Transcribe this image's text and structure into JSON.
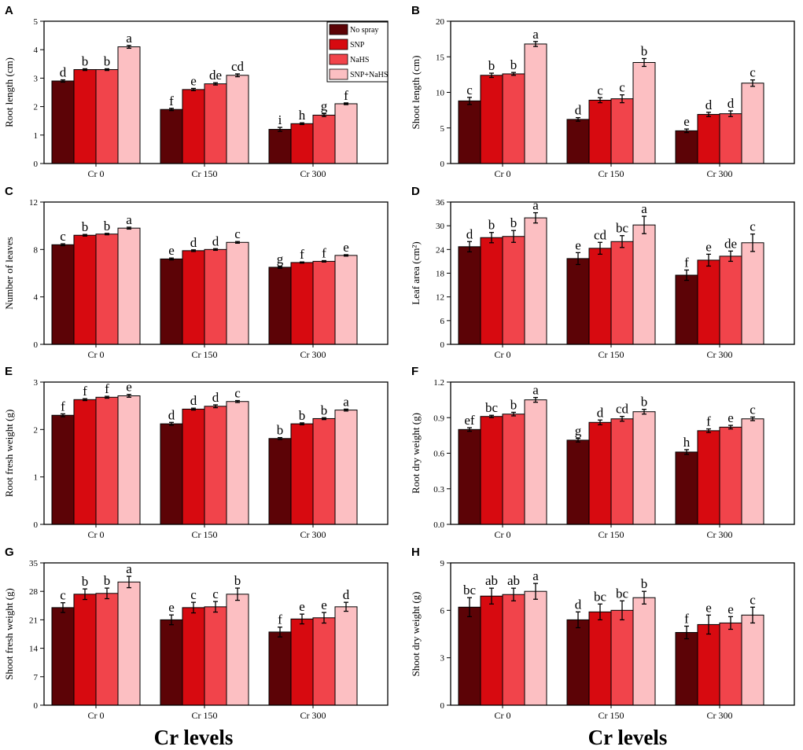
{
  "figure": {
    "xlabel": "Cr levels",
    "categories": [
      "Cr 0",
      "Cr 150",
      "Cr 300"
    ],
    "legend": [
      "No spray",
      "SNP",
      "NaHS",
      "SNP+NaHS"
    ],
    "colors": {
      "No spray": "#5c0306",
      "SNP": "#d70a10",
      "NaHS": "#f1444b",
      "SNP+NaHS": "#fcbfc2"
    }
  },
  "chart_data": [
    {
      "type": "bar",
      "panel": "A",
      "ylabel": "Root length (cm)",
      "categories": [
        "Cr 0",
        "Cr 150",
        "Cr 300"
      ],
      "ylim": [
        0,
        5
      ],
      "yticks": [
        "0",
        "1",
        "2",
        "3",
        "4",
        "5"
      ],
      "legend": "top-right",
      "series": [
        {
          "name": "No spray",
          "values": [
            2.9,
            1.9,
            1.2
          ],
          "errors": [
            0.04,
            0.04,
            0.07
          ],
          "letters": [
            "d",
            "f",
            "i"
          ]
        },
        {
          "name": "SNP",
          "values": [
            3.3,
            2.6,
            1.4
          ],
          "errors": [
            0.03,
            0.04,
            0.03
          ],
          "letters": [
            "b",
            "e",
            "h"
          ]
        },
        {
          "name": "NaHS",
          "values": [
            3.3,
            2.8,
            1.7
          ],
          "errors": [
            0.03,
            0.04,
            0.05
          ],
          "letters": [
            "b",
            "de",
            "g"
          ]
        },
        {
          "name": "SNP+NaHS",
          "values": [
            4.1,
            3.1,
            2.1
          ],
          "errors": [
            0.05,
            0.05,
            0.03
          ],
          "letters": [
            "a",
            "cd",
            "f"
          ]
        }
      ]
    },
    {
      "type": "bar",
      "panel": "B",
      "ylabel": "Shoot length (cm)",
      "categories": [
        "Cr 0",
        "Cr 150",
        "Cr 300"
      ],
      "ylim": [
        0,
        20
      ],
      "yticks": [
        "0",
        "5",
        "10",
        "15",
        "20"
      ],
      "series": [
        {
          "name": "No spray",
          "values": [
            8.8,
            6.2,
            4.6
          ],
          "errors": [
            0.5,
            0.25,
            0.25
          ],
          "letters": [
            "c",
            "d",
            "e"
          ]
        },
        {
          "name": "SNP",
          "values": [
            12.4,
            8.9,
            6.9
          ],
          "errors": [
            0.3,
            0.35,
            0.3
          ],
          "letters": [
            "b",
            "c",
            "d"
          ]
        },
        {
          "name": "NaHS",
          "values": [
            12.6,
            9.1,
            7.0
          ],
          "errors": [
            0.2,
            0.55,
            0.4
          ],
          "letters": [
            "b",
            "c",
            "d"
          ]
        },
        {
          "name": "SNP+NaHS",
          "values": [
            16.8,
            14.2,
            11.3
          ],
          "errors": [
            0.35,
            0.55,
            0.45
          ],
          "letters": [
            "a",
            "b",
            "c"
          ]
        }
      ]
    },
    {
      "type": "bar",
      "panel": "C",
      "ylabel": "Number of leaves",
      "categories": [
        "Cr 0",
        "Cr 150",
        "Cr 300"
      ],
      "ylim": [
        0,
        12
      ],
      "yticks": [
        "0",
        "4",
        "8",
        "12"
      ],
      "series": [
        {
          "name": "No spray",
          "values": [
            8.4,
            7.2,
            6.5
          ],
          "errors": [
            0.08,
            0.08,
            0.08
          ],
          "letters": [
            "c",
            "e",
            "g"
          ]
        },
        {
          "name": "SNP",
          "values": [
            9.2,
            7.9,
            6.9
          ],
          "errors": [
            0.07,
            0.07,
            0.05
          ],
          "letters": [
            "b",
            "d",
            "f"
          ]
        },
        {
          "name": "NaHS",
          "values": [
            9.3,
            8.0,
            7.0
          ],
          "errors": [
            0.06,
            0.07,
            0.06
          ],
          "letters": [
            "b",
            "d",
            "f"
          ]
        },
        {
          "name": "SNP+NaHS",
          "values": [
            9.8,
            8.6,
            7.5
          ],
          "errors": [
            0.08,
            0.07,
            0.06
          ],
          "letters": [
            "a",
            "c",
            "e"
          ]
        }
      ]
    },
    {
      "type": "bar",
      "panel": "D",
      "ylabel": "Leaf area (cm²)",
      "categories": [
        "Cr 0",
        "Cr 150",
        "Cr 300"
      ],
      "ylim": [
        0,
        36
      ],
      "yticks": [
        "0",
        "6",
        "12",
        "18",
        "24",
        "30",
        "36"
      ],
      "series": [
        {
          "name": "No spray",
          "values": [
            24.7,
            21.7,
            17.5
          ],
          "errors": [
            1.3,
            1.5,
            1.3
          ],
          "letters": [
            "d",
            "e",
            "f"
          ]
        },
        {
          "name": "SNP",
          "values": [
            27.0,
            24.3,
            21.3
          ],
          "errors": [
            1.3,
            1.5,
            1.5
          ],
          "letters": [
            "b",
            "cd",
            "e"
          ]
        },
        {
          "name": "NaHS",
          "values": [
            27.3,
            26.0,
            22.3
          ],
          "errors": [
            1.5,
            1.5,
            1.3
          ],
          "letters": [
            "b",
            "bc",
            "de"
          ]
        },
        {
          "name": "SNP+NaHS",
          "values": [
            32.0,
            30.2,
            25.7
          ],
          "errors": [
            1.3,
            2.2,
            2.2
          ],
          "letters": [
            "a",
            "a",
            "c"
          ]
        }
      ]
    },
    {
      "type": "bar",
      "panel": "E",
      "ylabel": "Root fresh weight (g)",
      "categories": [
        "Cr 0",
        "Cr 150",
        "Cr 300"
      ],
      "ylim": [
        0,
        3
      ],
      "yticks": [
        "0",
        "1",
        "2",
        "3"
      ],
      "series": [
        {
          "name": "No spray",
          "values": [
            2.3,
            2.12,
            1.81
          ],
          "errors": [
            0.03,
            0.03,
            0.02
          ],
          "letters": [
            "f",
            "d",
            "b"
          ]
        },
        {
          "name": "SNP",
          "values": [
            2.63,
            2.43,
            2.12
          ],
          "errors": [
            0.02,
            0.02,
            0.02
          ],
          "letters": [
            "f",
            "d",
            "b"
          ]
        },
        {
          "name": "NaHS",
          "values": [
            2.68,
            2.49,
            2.23
          ],
          "errors": [
            0.02,
            0.03,
            0.02
          ],
          "letters": [
            "f",
            "d",
            "b"
          ]
        },
        {
          "name": "SNP+NaHS",
          "values": [
            2.71,
            2.59,
            2.41
          ],
          "errors": [
            0.03,
            0.02,
            0.02
          ],
          "letters": [
            "e",
            "c",
            "a"
          ]
        }
      ]
    },
    {
      "type": "bar",
      "panel": "F",
      "ylabel": "Root dry weight (g)",
      "categories": [
        "Cr 0",
        "Cr 150",
        "Cr 300"
      ],
      "ylim": [
        0,
        1.2
      ],
      "yticks": [
        "0.0",
        "0.3",
        "0.6",
        "0.9",
        "1.2"
      ],
      "series": [
        {
          "name": "No spray",
          "values": [
            0.8,
            0.71,
            0.61
          ],
          "errors": [
            0.015,
            0.015,
            0.02
          ],
          "letters": [
            "ef",
            "g",
            "h"
          ]
        },
        {
          "name": "SNP",
          "values": [
            0.91,
            0.86,
            0.79
          ],
          "errors": [
            0.01,
            0.02,
            0.015
          ],
          "letters": [
            "bc",
            "d",
            "f"
          ]
        },
        {
          "name": "NaHS",
          "values": [
            0.93,
            0.89,
            0.82
          ],
          "errors": [
            0.015,
            0.02,
            0.015
          ],
          "letters": [
            "b",
            "cd",
            "e"
          ]
        },
        {
          "name": "SNP+NaHS",
          "values": [
            1.05,
            0.95,
            0.89
          ],
          "errors": [
            0.02,
            0.02,
            0.015
          ],
          "letters": [
            "a",
            "b",
            "c"
          ]
        }
      ]
    },
    {
      "type": "bar",
      "panel": "G",
      "ylabel": "Shoot fresh weight (g)",
      "categories": [
        "Cr 0",
        "Cr 150",
        "Cr 300"
      ],
      "ylim": [
        0,
        35
      ],
      "yticks": [
        "0",
        "7",
        "14",
        "21",
        "28",
        "35"
      ],
      "series": [
        {
          "name": "No spray",
          "values": [
            24.0,
            21.0,
            18.0
          ],
          "errors": [
            1.2,
            1.2,
            1.2
          ],
          "letters": [
            "c",
            "e",
            "f"
          ]
        },
        {
          "name": "SNP",
          "values": [
            27.3,
            24.0,
            21.2
          ],
          "errors": [
            1.3,
            1.3,
            1.2
          ],
          "letters": [
            "b",
            "c",
            "e"
          ]
        },
        {
          "name": "NaHS",
          "values": [
            27.5,
            24.2,
            21.5
          ],
          "errors": [
            1.3,
            1.3,
            1.3
          ],
          "letters": [
            "b",
            "c",
            "e"
          ]
        },
        {
          "name": "SNP+NaHS",
          "values": [
            30.3,
            27.3,
            24.2
          ],
          "errors": [
            1.4,
            1.5,
            1.1
          ],
          "letters": [
            "a",
            "b",
            "d"
          ]
        }
      ]
    },
    {
      "type": "bar",
      "panel": "H",
      "ylabel": "Shoot dry weight (g)",
      "categories": [
        "Cr 0",
        "Cr 150",
        "Cr 300"
      ],
      "ylim": [
        0,
        9
      ],
      "yticks": [
        "0",
        "3",
        "6",
        "9"
      ],
      "series": [
        {
          "name": "No spray",
          "values": [
            6.2,
            5.4,
            4.6
          ],
          "errors": [
            0.6,
            0.5,
            0.4
          ],
          "letters": [
            "bc",
            "d",
            "f"
          ]
        },
        {
          "name": "SNP",
          "values": [
            6.9,
            5.9,
            5.1
          ],
          "errors": [
            0.5,
            0.5,
            0.6
          ],
          "letters": [
            "ab",
            "bc",
            "e"
          ]
        },
        {
          "name": "NaHS",
          "values": [
            7.0,
            6.0,
            5.2
          ],
          "errors": [
            0.4,
            0.6,
            0.4
          ],
          "letters": [
            "ab",
            "bc",
            "e"
          ]
        },
        {
          "name": "SNP+NaHS",
          "values": [
            7.2,
            6.8,
            5.7
          ],
          "errors": [
            0.5,
            0.4,
            0.5
          ],
          "letters": [
            "a",
            "b",
            "c"
          ]
        }
      ]
    }
  ]
}
